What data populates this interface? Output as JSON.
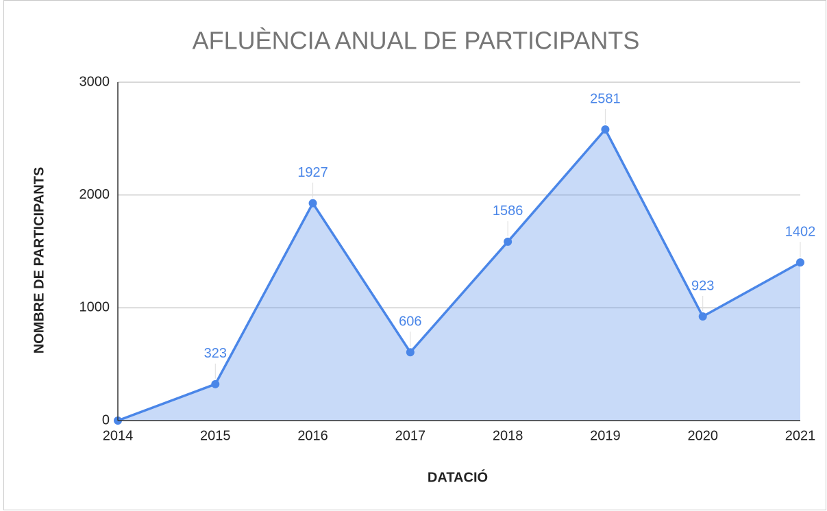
{
  "chart_data": {
    "type": "area",
    "title": "AFLUÈNCIA ANUAL DE PARTICIPANTS",
    "x_label": "DATACIÓ",
    "y_label": "NOMBRE DE PARTICIPANTS",
    "categories": [
      "2014",
      "2015",
      "2016",
      "2017",
      "2018",
      "2019",
      "2020",
      "2021"
    ],
    "values": [
      0,
      323,
      1927,
      606,
      1586,
      2581,
      923,
      1402
    ],
    "value_labels": [
      null,
      "323",
      "1927",
      "606",
      "1586",
      "2581",
      "923",
      "1402"
    ],
    "color": "#4a86e8",
    "ylim": [
      0,
      3000
    ],
    "yticks": [
      0,
      1000,
      2000,
      3000
    ],
    "grid": true
  }
}
